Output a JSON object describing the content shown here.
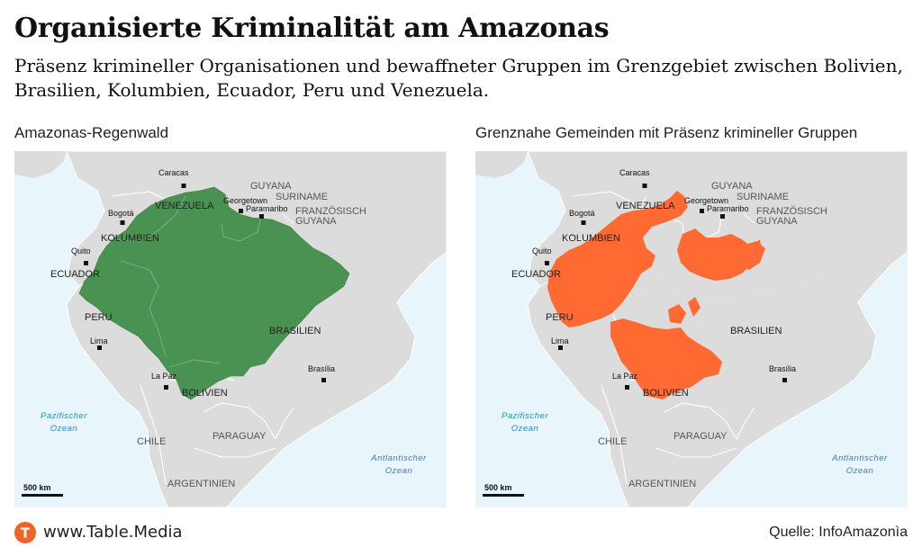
{
  "title": "Organisierte Kriminalität am Amazonas",
  "subtitle": "Präsenz krimineller Organisationen und bewaffneter Gruppen im Grenzgebiet zwischen Bolivien, Brasilien, Kolumbien, Ecuador, Peru und Venezuela.",
  "colors": {
    "rainforest": "#4a9252",
    "criminal_presence": "#ff6a33",
    "land": "#dcdcdc",
    "water": "#e8f5fb",
    "logo": "#f06427"
  },
  "maps": [
    {
      "heading": "Amazonas-Regenwald",
      "cities": [
        "Caracas",
        "Bogotá",
        "Quito",
        "Lima",
        "La Paz",
        "Brasília",
        "Georgetown",
        "Paramaribo"
      ],
      "countries": [
        "VENEZUELA",
        "KOLUMBIEN",
        "ECUADOR",
        "PERU",
        "BRASILIEN",
        "BOLIVIEN",
        "CHILE",
        "PARAGUAY",
        "ARGENTINIEN"
      ],
      "guianas": [
        "GUYANA",
        "SURINAME",
        "FRANZÖSISCH",
        "GUYANA"
      ],
      "oceans": [
        [
          "Pazifischer",
          "Ozean"
        ],
        [
          "Antlantischer",
          "Ozean"
        ]
      ],
      "scale": "500 km"
    },
    {
      "heading": "Grenznahe Gemeinden mit Präsenz krimineller Gruppen",
      "cities": [
        "Caracas",
        "Bogotá",
        "Quito",
        "Lima",
        "La Paz",
        "Brasília",
        "Georgetown",
        "Paramaribo"
      ],
      "countries": [
        "VENEZUELA",
        "KOLUMBIEN",
        "ECUADOR",
        "PERU",
        "BRASILIEN",
        "BOLIVIEN",
        "CHILE",
        "PARAGUAY",
        "ARGENTINIEN"
      ],
      "guianas": [
        "GUYANA",
        "SURINAME",
        "FRANZÖSISCH",
        "GUYANA"
      ],
      "oceans": [
        [
          "Pazifischer",
          "Ozean"
        ],
        [
          "Antlantischer",
          "Ozean"
        ]
      ],
      "scale": "500 km"
    }
  ],
  "footer": {
    "logo_letter": "T",
    "url": "www.Table.Media",
    "source": "Quelle: InfoAmazonìa"
  }
}
